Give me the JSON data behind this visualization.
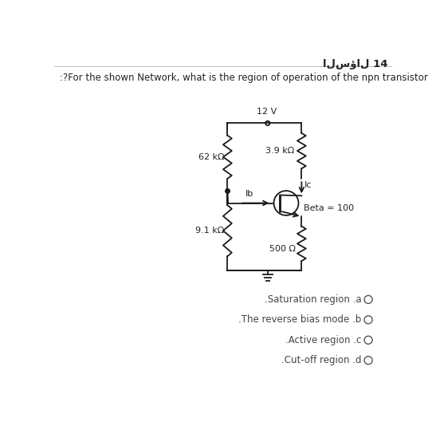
{
  "title_ar": "السؤال 14",
  "question": ":?For the shown Network, what is the region of operation of the npn transistor",
  "circuit": {
    "vcc": "12 V",
    "r1": "62 kΩ",
    "r2": "9.1 kΩ",
    "rc": "3.9 kΩ",
    "re": "500 Ω",
    "beta": "Beta = 100",
    "ic_label": "Ic",
    "ib_label": "Ib"
  },
  "choices": [
    ".Saturation region .a",
    ".The reverse bias mode .b",
    ".Active region .c",
    ".Cut-off region .d"
  ],
  "bg_color": "#ffffff",
  "text_color": "#222222",
  "line_color": "#1a1a1a",
  "font_size": 8.5,
  "title_font_size": 9.5
}
